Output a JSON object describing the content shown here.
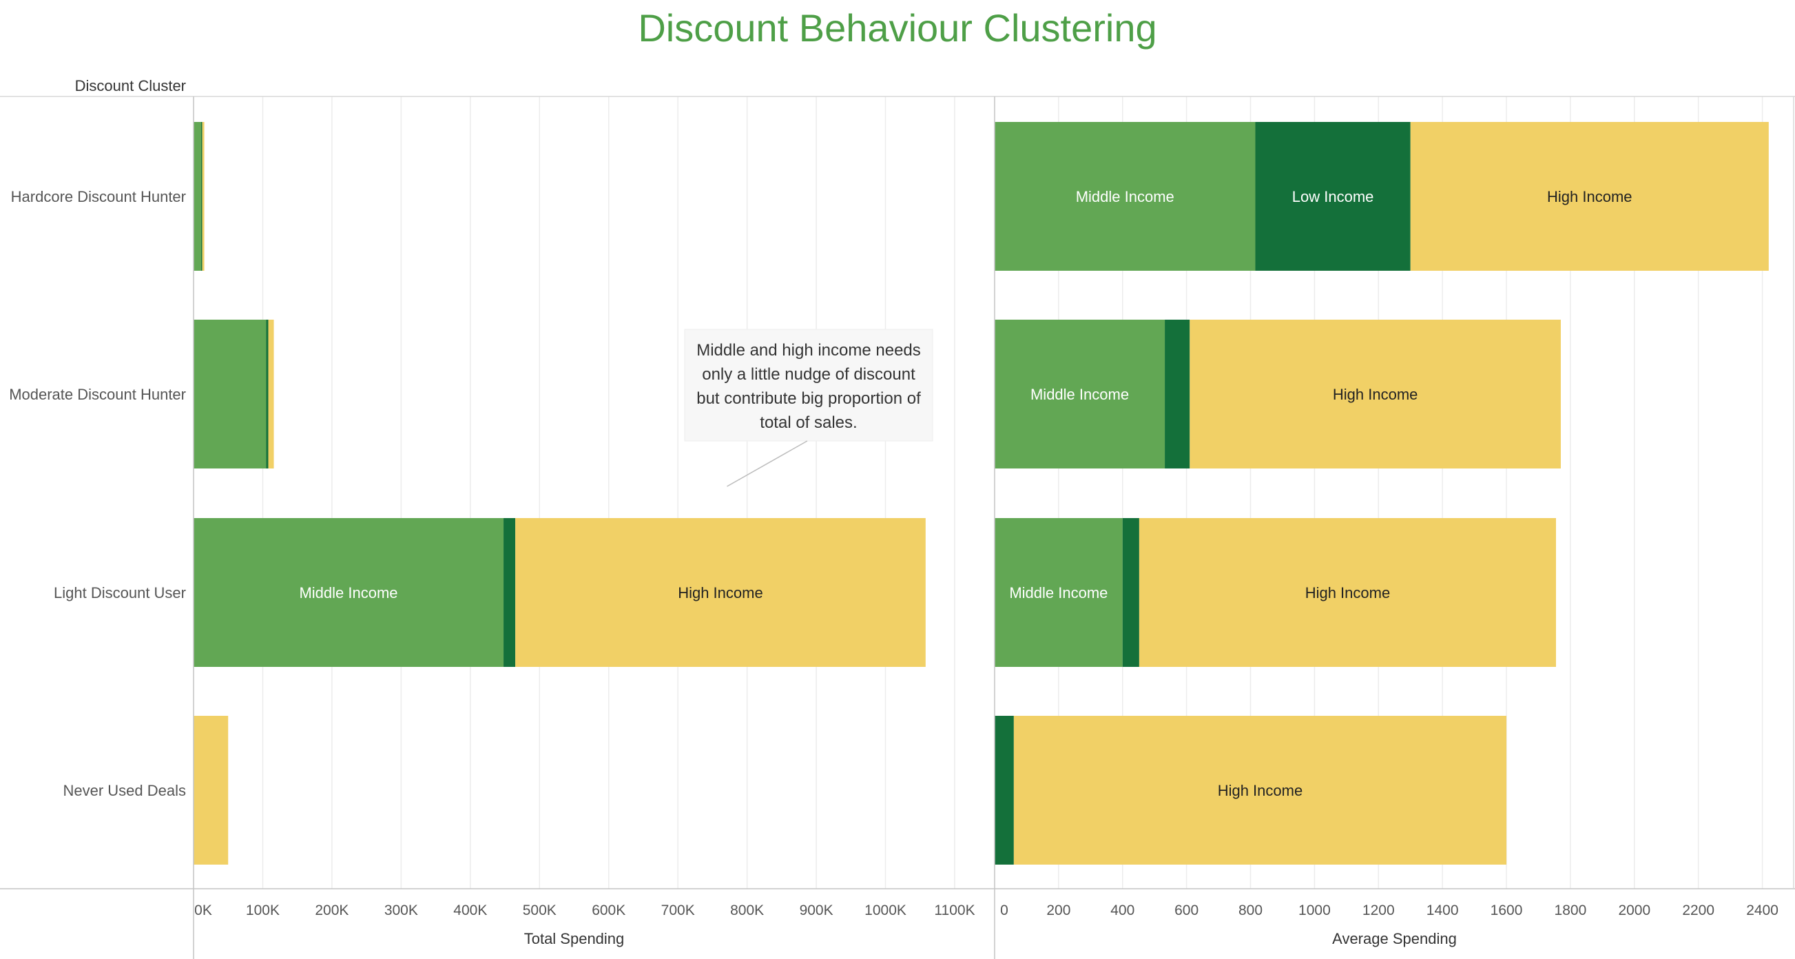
{
  "chart_data": {
    "title": "Discount Behaviour Clustering",
    "row_header": "Discount Cluster",
    "type": "bar",
    "orientation": "horizontal",
    "stacked": true,
    "categories": [
      "Hardcore Discount Hunter",
      "Moderate Discount Hunter",
      "Light Discount User",
      "Never Used Deals"
    ],
    "series_order": [
      "Middle Income",
      "Low Income",
      "High Income"
    ],
    "colors": {
      "Middle Income": "#62a754",
      "Low Income": "#14703a",
      "High Income": "#f1d066",
      "title": "#4e9f47"
    },
    "panels": [
      {
        "xlabel": "Total Spending",
        "xlim": [
          0,
          1100000
        ],
        "ticks": [
          0,
          100000,
          200000,
          300000,
          400000,
          500000,
          600000,
          700000,
          800000,
          900000,
          1000000,
          1100000
        ],
        "tick_labels": [
          "0K",
          "100K",
          "200K",
          "300K",
          "400K",
          "500K",
          "600K",
          "700K",
          "800K",
          "900K",
          "1000K",
          "1100K"
        ],
        "rows": [
          [
            {
              "series": "Middle Income",
              "value": 11000,
              "label": ""
            },
            {
              "series": "Low Income",
              "value": 1500,
              "label": ""
            },
            {
              "series": "High Income",
              "value": 3000,
              "label": ""
            }
          ],
          [
            {
              "series": "Middle Income",
              "value": 105000,
              "label": ""
            },
            {
              "series": "Low Income",
              "value": 3000,
              "label": ""
            },
            {
              "series": "High Income",
              "value": 8000,
              "label": ""
            }
          ],
          [
            {
              "series": "Middle Income",
              "value": 448000,
              "label": "Middle Income"
            },
            {
              "series": "Low Income",
              "value": 17000,
              "label": ""
            },
            {
              "series": "High Income",
              "value": 593000,
              "label": "High Income"
            }
          ],
          [
            {
              "series": "High Income",
              "value": 50000,
              "label": ""
            }
          ]
        ]
      },
      {
        "xlabel": "Average Spending",
        "xlim": [
          0,
          2500
        ],
        "ticks": [
          0,
          200,
          400,
          600,
          800,
          1000,
          1200,
          1400,
          1600,
          1800,
          2000,
          2200,
          2400
        ],
        "tick_labels": [
          "0",
          "200",
          "400",
          "600",
          "800",
          "1000",
          "1200",
          "1400",
          "1600",
          "1800",
          "2000",
          "2200",
          "2400"
        ],
        "rows": [
          [
            {
              "series": "Middle Income",
              "value": 815,
              "label": "Middle Income"
            },
            {
              "series": "Low Income",
              "value": 485,
              "label": "Low Income"
            },
            {
              "series": "High Income",
              "value": 1120,
              "label": "High Income"
            }
          ],
          [
            {
              "series": "Middle Income",
              "value": 532,
              "label": "Middle Income"
            },
            {
              "series": "Low Income",
              "value": 78,
              "label": ""
            },
            {
              "series": "High Income",
              "value": 1160,
              "label": "High Income"
            }
          ],
          [
            {
              "series": "Middle Income",
              "value": 400,
              "label": "Middle Income"
            },
            {
              "series": "Low Income",
              "value": 52,
              "label": ""
            },
            {
              "series": "High Income",
              "value": 1303,
              "label": "High Income"
            }
          ],
          [
            {
              "series": "Low Income",
              "value": 60,
              "label": ""
            },
            {
              "series": "High Income",
              "value": 1540,
              "label": "High Income"
            }
          ]
        ]
      }
    ],
    "annotation": {
      "text_lines": [
        "Middle and high income needs",
        "only a little nudge of discount",
        "but contribute big proportion of",
        "total of sales."
      ],
      "panel": 0,
      "points_to_value": 775000,
      "points_to_row": 2
    },
    "grid": true,
    "legend": "none"
  }
}
